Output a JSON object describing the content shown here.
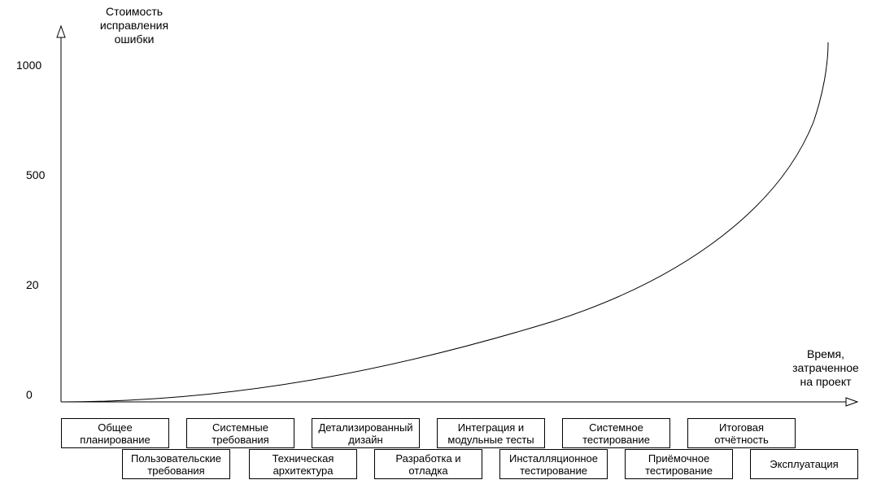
{
  "y_axis": {
    "label": "Стоимость\nисправления\nошибки",
    "ticks": [
      "1000",
      "500",
      "20",
      "0"
    ]
  },
  "x_axis": {
    "label": "Время,\nзатраченное\nна проект"
  },
  "phases_row1": [
    "Общее\nпланирование",
    "Системные\nтребования",
    "Детализированный\nдизайн",
    "Интеграция и\nмодульные тесты",
    "Системное\nтестирование",
    "Итоговая\nотчётность"
  ],
  "phases_row2": [
    "Пользовательские\nтребования",
    "Техническая\nархитектура",
    "Разработка и\nотладка",
    "Инсталляционное\nтестирование",
    "Приёмочное\nтестирование",
    "Эксплуатация"
  ],
  "chart_data": {
    "type": "line",
    "description_of_shape": "exponential growth",
    "ylabel": "Стоимость исправления ошибки",
    "xlabel": "Время, затраченное на проект",
    "y_tick_labels": [
      "0",
      "20",
      "500",
      "1000"
    ],
    "line_color": "#000000"
  }
}
